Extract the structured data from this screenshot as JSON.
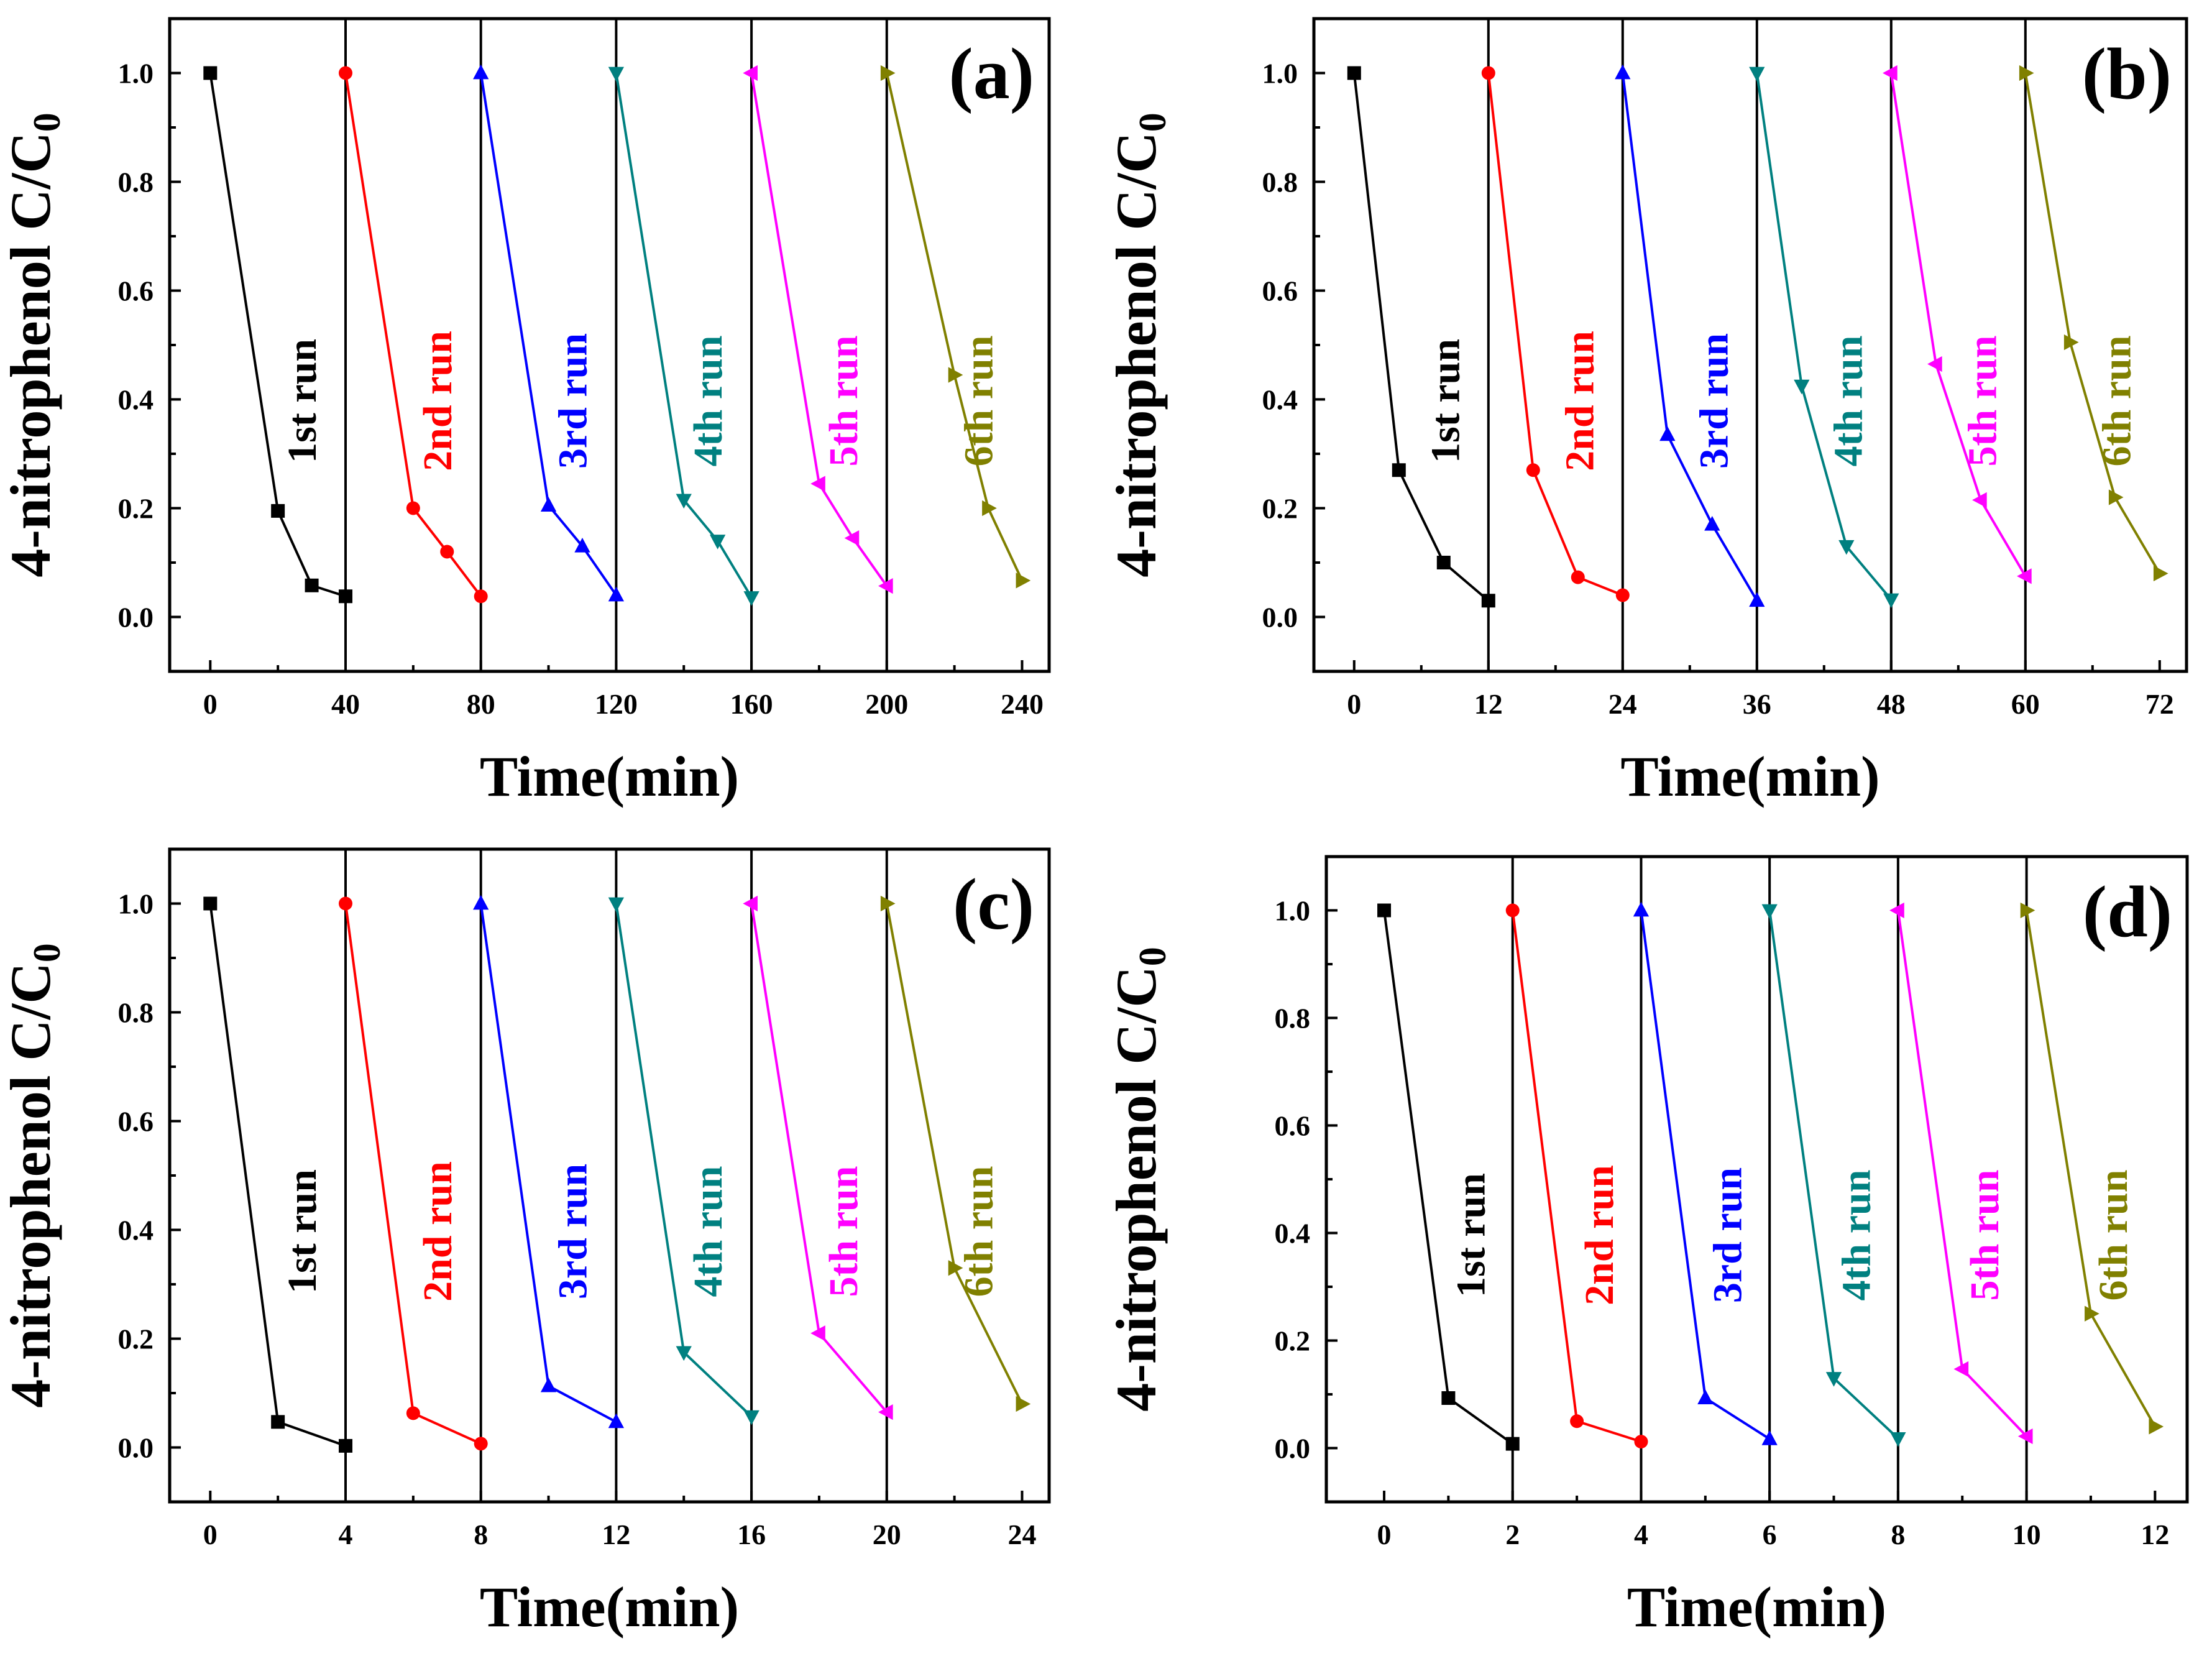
{
  "chart_data": [
    {
      "type": "line",
      "panel_label": "(a)",
      "xlabel": "Time(min)",
      "ylabel": "4-nitrophenol C/C",
      "ylabel_subscript": "0",
      "xlim": [
        -12,
        248
      ],
      "ylim": [
        -0.1,
        1.1
      ],
      "xticks": [
        0,
        40,
        80,
        120,
        160,
        200,
        240
      ],
      "xtick_labels": [
        "0",
        "40",
        "80",
        "120",
        "160",
        "200",
        "240"
      ],
      "yticks": [
        0.0,
        0.2,
        0.4,
        0.6,
        0.8,
        1.0
      ],
      "ytick_labels": [
        "0.0",
        "0.2",
        "0.4",
        "0.6",
        "0.8",
        "1.0"
      ],
      "separators": [
        40,
        80,
        120,
        160,
        200
      ],
      "series": [
        {
          "name": "1st run",
          "color": "#000000",
          "marker": "square",
          "x": [
            0,
            20,
            30,
            40
          ],
          "y": [
            1.0,
            0.195,
            0.058,
            0.038
          ]
        },
        {
          "name": "2nd run",
          "color": "#ff0000",
          "marker": "circle",
          "x": [
            40,
            60,
            70,
            80
          ],
          "y": [
            1.0,
            0.2,
            0.12,
            0.038
          ]
        },
        {
          "name": "3rd run",
          "color": "#0000ff",
          "marker": "triangle-up",
          "x": [
            80,
            100,
            110,
            120
          ],
          "y": [
            1.0,
            0.205,
            0.13,
            0.04
          ]
        },
        {
          "name": "4th run",
          "color": "#008080",
          "marker": "triangle-down",
          "x": [
            120,
            140,
            150,
            160
          ],
          "y": [
            1.0,
            0.215,
            0.14,
            0.036
          ]
        },
        {
          "name": "5th run",
          "color": "#ff00ff",
          "marker": "triangle-left",
          "x": [
            160,
            180,
            190,
            200
          ],
          "y": [
            1.0,
            0.245,
            0.145,
            0.057
          ]
        },
        {
          "name": "6th run",
          "color": "#808000",
          "marker": "triangle-right",
          "x": [
            200,
            220,
            230,
            240
          ],
          "y": [
            1.0,
            0.445,
            0.2,
            0.067
          ]
        }
      ]
    },
    {
      "type": "line",
      "panel_label": "(b)",
      "xlabel": "Time(min)",
      "ylabel": "4-nitrophenol C/C",
      "ylabel_subscript": "0",
      "xlim": [
        -3.6,
        74.4
      ],
      "ylim": [
        -0.1,
        1.1
      ],
      "xticks": [
        0,
        12,
        24,
        36,
        48,
        60,
        72
      ],
      "xtick_labels": [
        "0",
        "12",
        "24",
        "36",
        "48",
        "60",
        "72"
      ],
      "yticks": [
        0.0,
        0.2,
        0.4,
        0.6,
        0.8,
        1.0
      ],
      "ytick_labels": [
        "0.0",
        "0.2",
        "0.4",
        "0.6",
        "0.8",
        "1.0"
      ],
      "separators": [
        12,
        24,
        36,
        48,
        60
      ],
      "series": [
        {
          "name": "1st run",
          "color": "#000000",
          "marker": "square",
          "x": [
            0,
            4,
            8,
            12
          ],
          "y": [
            1.0,
            0.27,
            0.1,
            0.03
          ]
        },
        {
          "name": "2nd run",
          "color": "#ff0000",
          "marker": "circle",
          "x": [
            12,
            16,
            20,
            24
          ],
          "y": [
            1.0,
            0.27,
            0.073,
            0.04
          ]
        },
        {
          "name": "3rd run",
          "color": "#0000ff",
          "marker": "triangle-up",
          "x": [
            24,
            28,
            32,
            36
          ],
          "y": [
            1.0,
            0.335,
            0.17,
            0.03
          ]
        },
        {
          "name": "4th run",
          "color": "#008080",
          "marker": "triangle-down",
          "x": [
            36,
            40,
            44,
            48
          ],
          "y": [
            1.0,
            0.425,
            0.13,
            0.032
          ]
        },
        {
          "name": "5th run",
          "color": "#ff00ff",
          "marker": "triangle-left",
          "x": [
            48,
            52,
            56,
            60
          ],
          "y": [
            1.0,
            0.465,
            0.215,
            0.075
          ]
        },
        {
          "name": "6th run",
          "color": "#808000",
          "marker": "triangle-right",
          "x": [
            60,
            64,
            68,
            72
          ],
          "y": [
            1.0,
            0.505,
            0.22,
            0.08
          ]
        }
      ]
    },
    {
      "type": "line",
      "panel_label": "(c)",
      "xlabel": "Time(min)",
      "ylabel": "4-nitrophenol C/C",
      "ylabel_subscript": "0",
      "xlim": [
        -1.2,
        24.8
      ],
      "ylim": [
        -0.1,
        1.1
      ],
      "xticks": [
        0,
        4,
        8,
        12,
        16,
        20,
        24
      ],
      "xtick_labels": [
        "0",
        "4",
        "8",
        "12",
        "16",
        "20",
        "24"
      ],
      "yticks": [
        0.0,
        0.2,
        0.4,
        0.6,
        0.8,
        1.0
      ],
      "ytick_labels": [
        "0.0",
        "0.2",
        "0.4",
        "0.6",
        "0.8",
        "1.0"
      ],
      "separators": [
        4,
        8,
        12,
        16,
        20
      ],
      "series": [
        {
          "name": "1st run",
          "color": "#000000",
          "marker": "square",
          "x": [
            0,
            2,
            4
          ],
          "y": [
            1.0,
            0.047,
            0.003
          ]
        },
        {
          "name": "2nd run",
          "color": "#ff0000",
          "marker": "circle",
          "x": [
            4,
            6,
            8
          ],
          "y": [
            1.0,
            0.063,
            0.007
          ]
        },
        {
          "name": "3rd run",
          "color": "#0000ff",
          "marker": "triangle-up",
          "x": [
            8,
            10,
            12
          ],
          "y": [
            1.0,
            0.113,
            0.047
          ]
        },
        {
          "name": "4th run",
          "color": "#008080",
          "marker": "triangle-down",
          "x": [
            12,
            14,
            16
          ],
          "y": [
            1.0,
            0.175,
            0.057
          ]
        },
        {
          "name": "5th run",
          "color": "#ff00ff",
          "marker": "triangle-left",
          "x": [
            16,
            18,
            20
          ],
          "y": [
            1.0,
            0.21,
            0.065
          ]
        },
        {
          "name": "6th run",
          "color": "#808000",
          "marker": "triangle-right",
          "x": [
            20,
            22,
            24
          ],
          "y": [
            1.0,
            0.33,
            0.08
          ]
        }
      ]
    },
    {
      "type": "line",
      "panel_label": "(d)",
      "xlabel": "Time(min)",
      "ylabel": "4-nitrophenol C/C",
      "ylabel_subscript": "0",
      "xlim": [
        -0.9,
        12.5
      ],
      "ylim": [
        -0.1,
        1.1
      ],
      "xticks": [
        0,
        2,
        4,
        6,
        8,
        10,
        12
      ],
      "xtick_labels": [
        "0",
        "2",
        "4",
        "6",
        "8",
        "10",
        "12"
      ],
      "yticks": [
        0.0,
        0.2,
        0.4,
        0.6,
        0.8,
        1.0
      ],
      "ytick_labels": [
        "0.0",
        "0.2",
        "0.4",
        "0.6",
        "0.8",
        "1.0"
      ],
      "separators": [
        2,
        4,
        6,
        8,
        10
      ],
      "series": [
        {
          "name": "1st run",
          "color": "#000000",
          "marker": "square",
          "x": [
            0,
            1,
            2
          ],
          "y": [
            1.0,
            0.093,
            0.008
          ]
        },
        {
          "name": "2nd run",
          "color": "#ff0000",
          "marker": "circle",
          "x": [
            2,
            3,
            4
          ],
          "y": [
            1.0,
            0.05,
            0.012
          ]
        },
        {
          "name": "3rd run",
          "color": "#0000ff",
          "marker": "triangle-up",
          "x": [
            4,
            5,
            6
          ],
          "y": [
            1.0,
            0.093,
            0.017
          ]
        },
        {
          "name": "4th run",
          "color": "#008080",
          "marker": "triangle-down",
          "x": [
            6,
            7,
            8
          ],
          "y": [
            1.0,
            0.13,
            0.018
          ]
        },
        {
          "name": "5th run",
          "color": "#ff00ff",
          "marker": "triangle-left",
          "x": [
            8,
            9,
            10
          ],
          "y": [
            1.0,
            0.147,
            0.022
          ]
        },
        {
          "name": "6th run",
          "color": "#808000",
          "marker": "triangle-right",
          "x": [
            10,
            11,
            12
          ],
          "y": [
            1.0,
            0.25,
            0.04
          ]
        }
      ]
    }
  ]
}
